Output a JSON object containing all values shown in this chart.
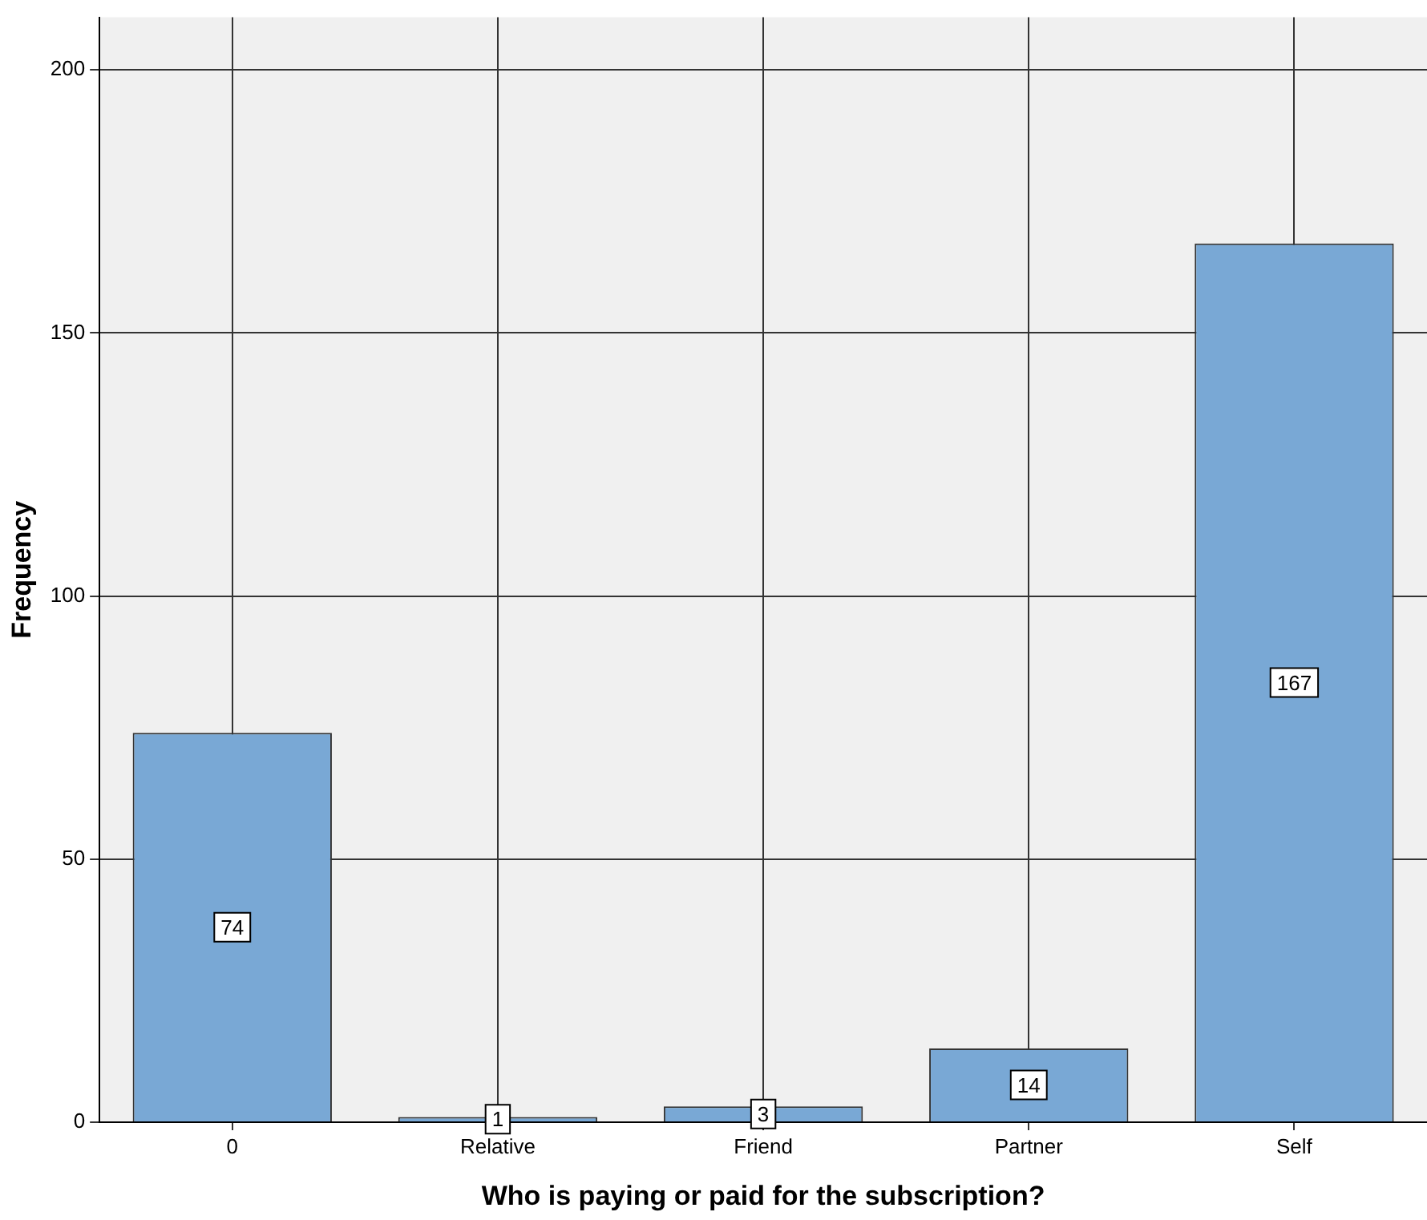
{
  "chart_data": {
    "type": "bar",
    "xlabel": "Who is paying or paid for the subscription?",
    "ylabel": "Frequency",
    "categories": [
      "0",
      "Relative",
      "Friend",
      "Partner",
      "Self"
    ],
    "values": [
      74,
      1,
      3,
      14,
      167
    ],
    "color": "#79a8d5",
    "ylim": [
      0,
      210
    ],
    "yticks": [
      0,
      50,
      100,
      150,
      200
    ],
    "grid": true,
    "data_labels": true
  }
}
